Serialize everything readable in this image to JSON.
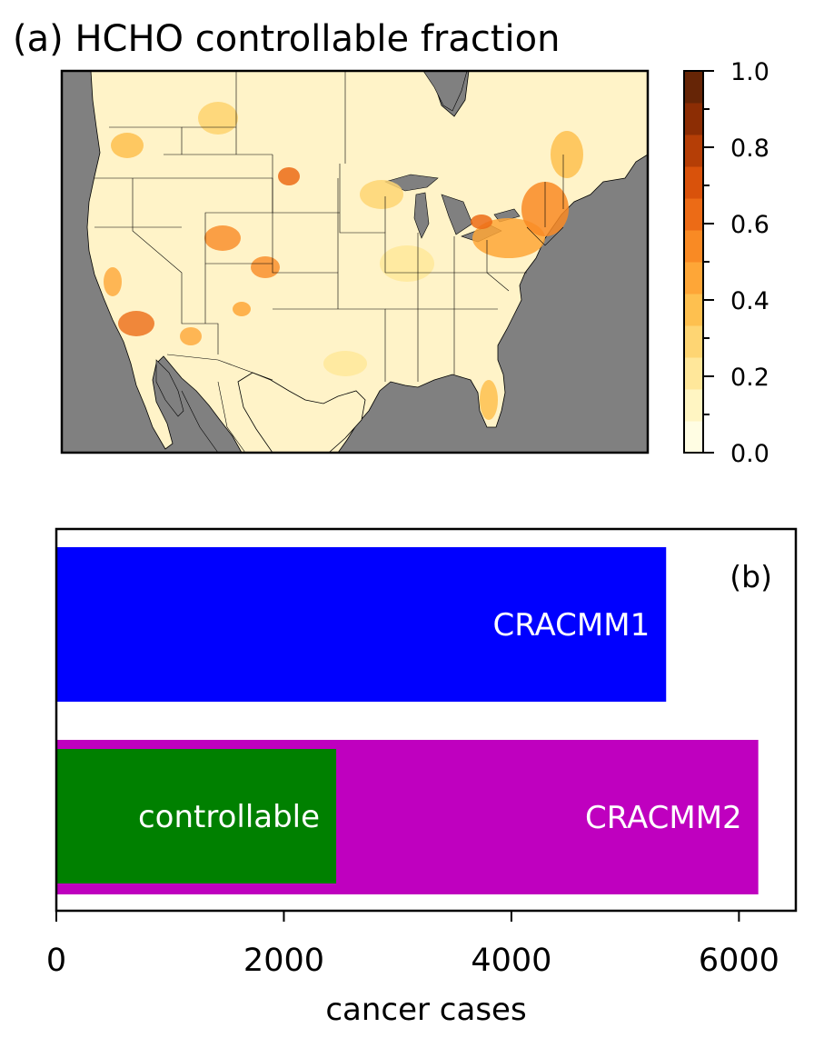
{
  "chart_data": [
    {
      "type": "heatmap",
      "title": "(a) HCHO controllable fraction",
      "colorbar": {
        "range": [
          0.0,
          1.0
        ],
        "ticks": [
          0.0,
          0.2,
          0.4,
          0.6,
          0.8,
          1.0
        ],
        "tick_labels": [
          "0.0",
          "0.2",
          "0.4",
          "0.6",
          "0.8",
          "1.0"
        ],
        "colors": [
          "#fffde3",
          "#fff5c2",
          "#ffe79a",
          "#fed573",
          "#fec04f",
          "#fea637",
          "#f98a24",
          "#ec6b16",
          "#d9520b",
          "#b53e06",
          "#8c2d04",
          "#662506"
        ]
      },
      "map_colors": {
        "water": "#808080",
        "land_low": "#fff3c8",
        "boundary": "#000000"
      }
    },
    {
      "type": "bar",
      "orientation": "horizontal",
      "panel_label": "(b)",
      "xlabel": "cancer cases",
      "xlim": [
        0,
        6500
      ],
      "xticks": [
        0,
        2000,
        4000,
        6000
      ],
      "xtick_labels": [
        "0",
        "2000",
        "4000",
        "6000"
      ],
      "bars": [
        {
          "label": "CRACMM1",
          "value": 5360,
          "color": "#0000ff"
        },
        {
          "label": "CRACMM2",
          "value": 6170,
          "color": "#bf00bf"
        },
        {
          "label": "controllable",
          "value": 2460,
          "color": "#008000"
        }
      ]
    }
  ]
}
